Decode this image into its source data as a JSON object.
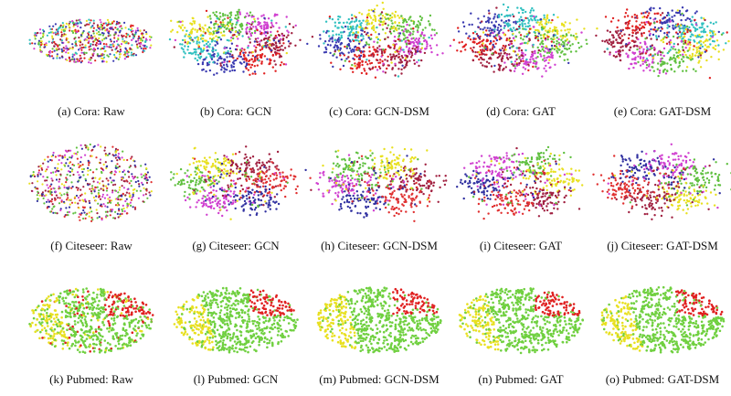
{
  "figure": {
    "rows": [
      {
        "panels": [
          {
            "caption": "(a) Cora: Raw"
          },
          {
            "caption": "(b) Cora: GCN"
          },
          {
            "caption": "(c) Cora: GCN-DSM"
          },
          {
            "caption": "(d) Cora: GAT"
          },
          {
            "caption": "(e) Cora: GAT-DSM"
          }
        ]
      },
      {
        "panels": [
          {
            "caption": "(f) Citeseer: Raw"
          },
          {
            "caption": "(g) Citeseer: GCN"
          },
          {
            "caption": "(h) Citeseer: GCN-DSM"
          },
          {
            "caption": "(i) Citeseer: GAT"
          },
          {
            "caption": "(j) Citeseer: GAT-DSM"
          }
        ]
      },
      {
        "panels": [
          {
            "caption": "(k) Pubmed: Raw"
          },
          {
            "caption": "(l) Pubmed: GCN"
          },
          {
            "caption": "(m) Pubmed: GCN-DSM"
          },
          {
            "caption": "(n) Pubmed: GAT"
          },
          {
            "caption": "(o) Pubmed: GAT-DSM"
          }
        ]
      }
    ]
  }
}
